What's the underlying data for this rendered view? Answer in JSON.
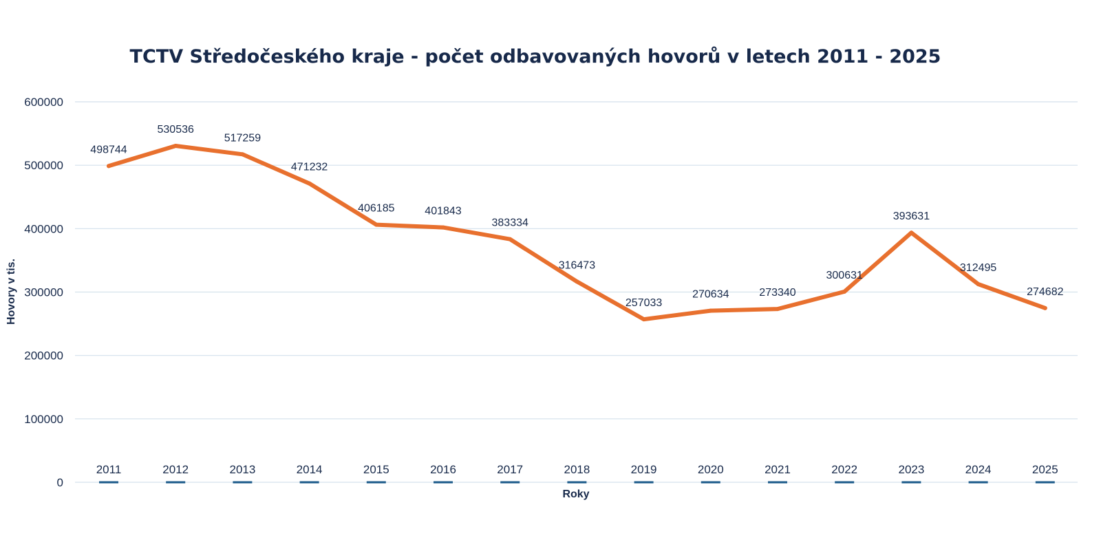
{
  "chart_data": {
    "type": "line",
    "title": "TCTV Středočeského kraje - počet odbavovaných hovorů v letech 2011 - 2025",
    "xlabel": "Roky",
    "ylabel": "Hovory v tis.",
    "categories": [
      "2011",
      "2012",
      "2013",
      "2014",
      "2015",
      "2016",
      "2017",
      "2018",
      "2019",
      "2020",
      "2021",
      "2022",
      "2023",
      "2024",
      "2025"
    ],
    "series": [
      {
        "values": [
          498744,
          530536,
          517259,
          471232,
          406185,
          401843,
          383334,
          316473,
          257033,
          270634,
          273340,
          300631,
          393631,
          312495,
          274682
        ],
        "color": "#e8702e"
      }
    ],
    "yticks": [
      "0",
      "100000",
      "200000",
      "300000",
      "400000",
      "500000",
      "600000"
    ],
    "ylim": [
      0,
      600000
    ],
    "grid": true,
    "legend": "none"
  }
}
